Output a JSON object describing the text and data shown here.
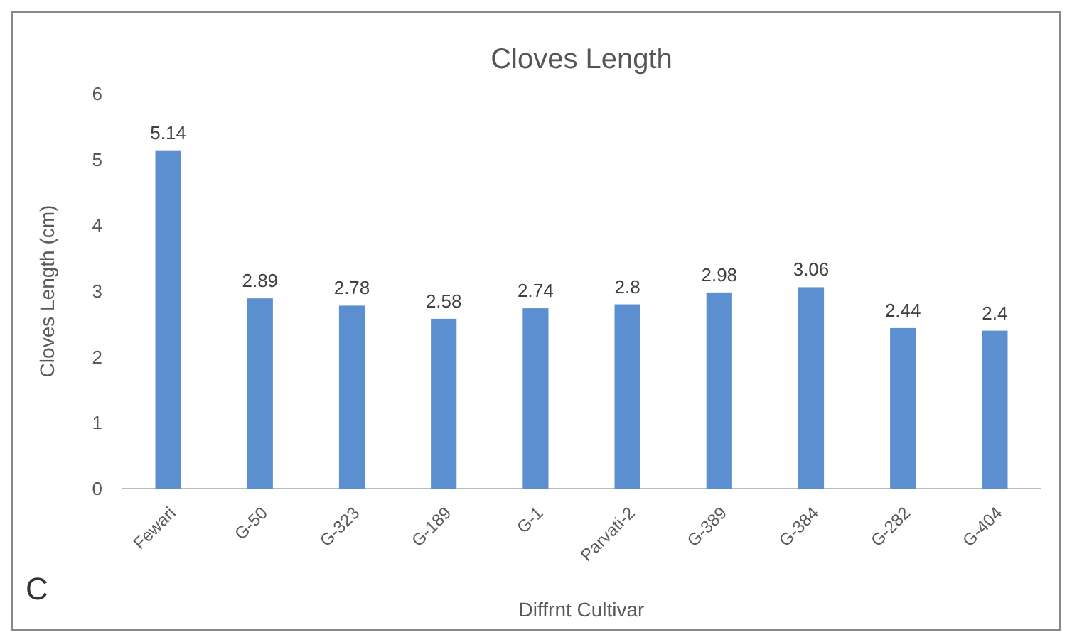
{
  "chart_data": {
    "type": "bar",
    "title": "Cloves Length",
    "xlabel": "Diffrnt Cultivar",
    "ylabel": "Cloves Length (cm)",
    "categories": [
      "Fewari",
      "G-50",
      "G-323",
      "G-189",
      "G-1",
      "Parvati-2",
      "G-389",
      "G-384",
      "G-282",
      "G-404"
    ],
    "values": [
      5.14,
      2.89,
      2.78,
      2.58,
      2.74,
      2.8,
      2.98,
      3.06,
      2.44,
      2.4
    ],
    "color": "#5b8fd0",
    "ylim": [
      0,
      6
    ],
    "yticks": [
      0,
      1,
      2,
      3,
      4,
      5,
      6
    ],
    "data_labels": true,
    "annotations": [
      "C"
    ]
  }
}
